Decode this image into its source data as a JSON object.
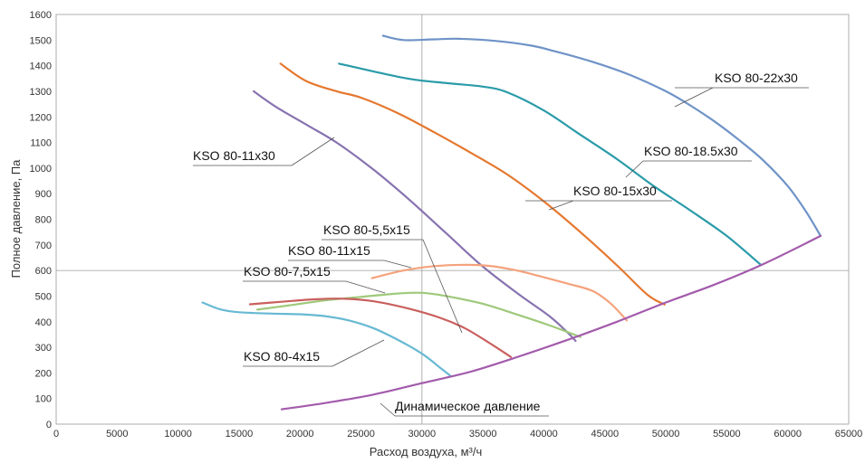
{
  "chart_data": {
    "type": "line",
    "xlabel": "Расход воздуха, м³/ч",
    "ylabel": "Полное давление, Па",
    "xlim": [
      0,
      65000
    ],
    "ylim": [
      0,
      1600
    ],
    "x_ticks": [
      0,
      5000,
      10000,
      15000,
      20000,
      25000,
      30000,
      35000,
      40000,
      45000,
      50000,
      55000,
      60000,
      65000
    ],
    "y_ticks": [
      0,
      100,
      200,
      300,
      400,
      500,
      600,
      700,
      800,
      900,
      1000,
      1100,
      1200,
      1300,
      1400,
      1500,
      1600
    ],
    "grid": "major lines at x=30000 and y=600",
    "series": [
      {
        "name": "KSO 80-22x30",
        "color": "#6f93c7",
        "points": [
          [
            26800,
            1517
          ],
          [
            28500,
            1500
          ],
          [
            31000,
            1503
          ],
          [
            33000,
            1505
          ],
          [
            36000,
            1497
          ],
          [
            39000,
            1478
          ],
          [
            41000,
            1455
          ],
          [
            44000,
            1415
          ],
          [
            47000,
            1365
          ],
          [
            50000,
            1300
          ],
          [
            52000,
            1245
          ],
          [
            54000,
            1182
          ],
          [
            56000,
            1110
          ],
          [
            58000,
            1030
          ],
          [
            60000,
            930
          ],
          [
            61500,
            830
          ],
          [
            62700,
            735
          ]
        ]
      },
      {
        "name": "KSO 80-18.5x30",
        "color": "#2a9ba9",
        "points": [
          [
            23200,
            1408
          ],
          [
            26000,
            1378
          ],
          [
            29000,
            1348
          ],
          [
            32000,
            1332
          ],
          [
            35000,
            1318
          ],
          [
            37000,
            1296
          ],
          [
            40000,
            1225
          ],
          [
            43000,
            1130
          ],
          [
            46000,
            1035
          ],
          [
            49000,
            930
          ],
          [
            52000,
            835
          ],
          [
            55000,
            735
          ],
          [
            57800,
            622
          ]
        ]
      },
      {
        "name": "KSO 80-15x30",
        "color": "#e5782f",
        "points": [
          [
            18400,
            1408
          ],
          [
            20500,
            1340
          ],
          [
            23000,
            1300
          ],
          [
            25000,
            1275
          ],
          [
            28000,
            1215
          ],
          [
            31000,
            1140
          ],
          [
            34000,
            1060
          ],
          [
            37000,
            975
          ],
          [
            40000,
            870
          ],
          [
            43000,
            750
          ],
          [
            46000,
            620
          ],
          [
            48500,
            505
          ],
          [
            49900,
            467
          ]
        ]
      },
      {
        "name": "KSO 80-11x30",
        "color": "#8773b0",
        "points": [
          [
            16200,
            1300
          ],
          [
            18000,
            1240
          ],
          [
            20500,
            1170
          ],
          [
            23000,
            1100
          ],
          [
            26000,
            995
          ],
          [
            29000,
            875
          ],
          [
            32000,
            745
          ],
          [
            35000,
            615
          ],
          [
            38000,
            505
          ],
          [
            40500,
            420
          ],
          [
            42000,
            355
          ],
          [
            42600,
            325
          ]
        ]
      },
      {
        "name": "KSO 80-5,5x15",
        "color": "#f4a27c",
        "points": [
          [
            25900,
            570
          ],
          [
            28500,
            600
          ],
          [
            31000,
            617
          ],
          [
            33500,
            622
          ],
          [
            35500,
            618
          ],
          [
            37500,
            603
          ],
          [
            39500,
            580
          ],
          [
            42000,
            548
          ],
          [
            44000,
            520
          ],
          [
            45500,
            470
          ],
          [
            46800,
            405
          ]
        ]
      },
      {
        "name": "KSO 80-11x15",
        "color": "#9ec97a",
        "points": [
          [
            16500,
            447
          ],
          [
            19000,
            463
          ],
          [
            22000,
            483
          ],
          [
            25000,
            497
          ],
          [
            28000,
            510
          ],
          [
            30000,
            513
          ],
          [
            32000,
            500
          ],
          [
            35000,
            470
          ],
          [
            38000,
            425
          ],
          [
            40500,
            385
          ],
          [
            42200,
            355
          ],
          [
            43000,
            340
          ]
        ]
      },
      {
        "name": "KSO 80-7,5x15",
        "color": "#c9605e",
        "points": [
          [
            15900,
            468
          ],
          [
            18500,
            478
          ],
          [
            21000,
            487
          ],
          [
            23500,
            490
          ],
          [
            26000,
            480
          ],
          [
            29000,
            450
          ],
          [
            31500,
            415
          ],
          [
            33500,
            375
          ],
          [
            35500,
            318
          ],
          [
            37300,
            262
          ]
        ]
      },
      {
        "name": "KSO 80-4x15",
        "color": "#67b9d3",
        "points": [
          [
            12000,
            475
          ],
          [
            13500,
            448
          ],
          [
            15000,
            437
          ],
          [
            17500,
            432
          ],
          [
            20000,
            429
          ],
          [
            22000,
            422
          ],
          [
            24000,
            405
          ],
          [
            26000,
            375
          ],
          [
            28000,
            330
          ],
          [
            30000,
            275
          ],
          [
            31500,
            220
          ],
          [
            32300,
            190
          ]
        ]
      },
      {
        "name": "Динамическое давление",
        "color": "#a35bac",
        "points": [
          [
            18500,
            58
          ],
          [
            22000,
            82
          ],
          [
            26000,
            115
          ],
          [
            30000,
            160
          ],
          [
            34000,
            205
          ],
          [
            38000,
            265
          ],
          [
            42000,
            330
          ],
          [
            46000,
            400
          ],
          [
            50000,
            475
          ],
          [
            54000,
            545
          ],
          [
            58000,
            625
          ],
          [
            62700,
            735
          ]
        ]
      }
    ]
  }
}
